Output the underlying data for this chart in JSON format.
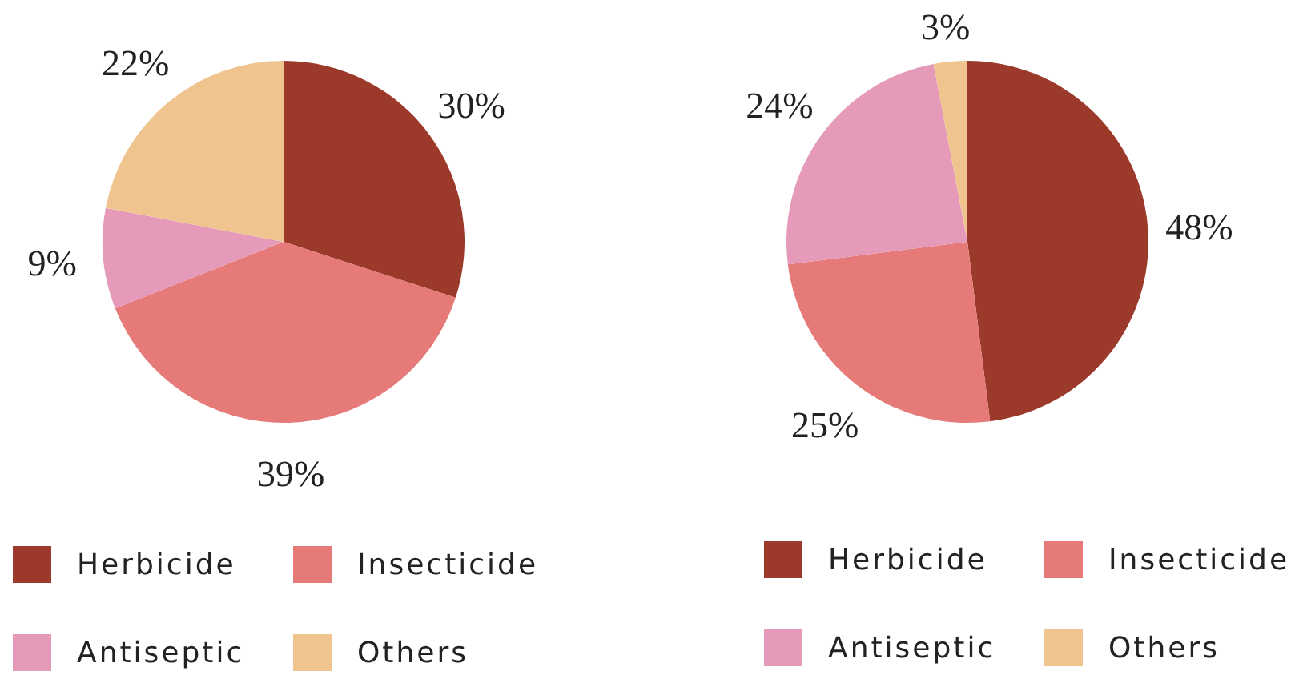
{
  "chart_data": [
    {
      "type": "pie",
      "categories": [
        "Herbicide",
        "Insecticide",
        "Antiseptic",
        "Others"
      ],
      "values": [
        30,
        39,
        9,
        22
      ],
      "value_labels": [
        "30%",
        "39%",
        "9%",
        "22%"
      ],
      "colors": [
        "#9b3a2a",
        "#e57a78",
        "#e49ab8",
        "#f0c48e"
      ],
      "legend": "bottom"
    },
    {
      "type": "pie",
      "categories": [
        "Herbicide",
        "Insecticide",
        "Antiseptic",
        "Others"
      ],
      "values": [
        48,
        25,
        24,
        3
      ],
      "value_labels": [
        "48%",
        "25%",
        "24%",
        "3%"
      ],
      "colors": [
        "#9b3a2a",
        "#e57a78",
        "#e49ab8",
        "#f0c48e"
      ],
      "legend": "bottom"
    }
  ]
}
